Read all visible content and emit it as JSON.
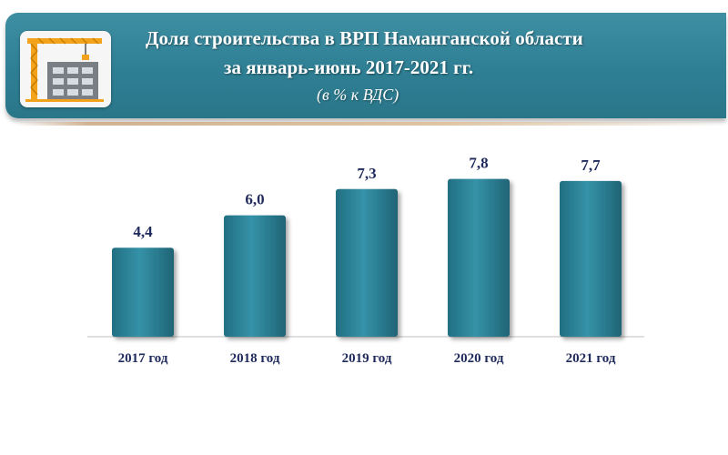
{
  "header": {
    "title_line1": "Доля строительства в ВРП Наманганской области",
    "title_line2": "за январь-июнь 2017-2021 гг.",
    "subtitle": "(в % к ВДС)",
    "logo_icon": "construction-crane-building-icon"
  },
  "colors": {
    "header_bg": "#2f7f94",
    "bar_fill": "#2f8499",
    "bar_edge": "#1f6475",
    "label_text": "#1f2a5c"
  },
  "chart_data": {
    "type": "bar",
    "title": "Доля строительства в ВРП Наманганской области за январь-июнь 2017-2021 гг.",
    "subtitle": "(в % к ВДС)",
    "categories": [
      "2017 год",
      "2018 год",
      "2019 год",
      "2020 год",
      "2021 год"
    ],
    "values": [
      4.4,
      6.0,
      7.3,
      7.8,
      7.7
    ],
    "value_labels": [
      "4,4",
      "6,0",
      "7,3",
      "7,8",
      "7,7"
    ],
    "ylim": [
      0,
      9
    ],
    "grid": false,
    "legend": "none",
    "xlabel": "",
    "ylabel": ""
  }
}
